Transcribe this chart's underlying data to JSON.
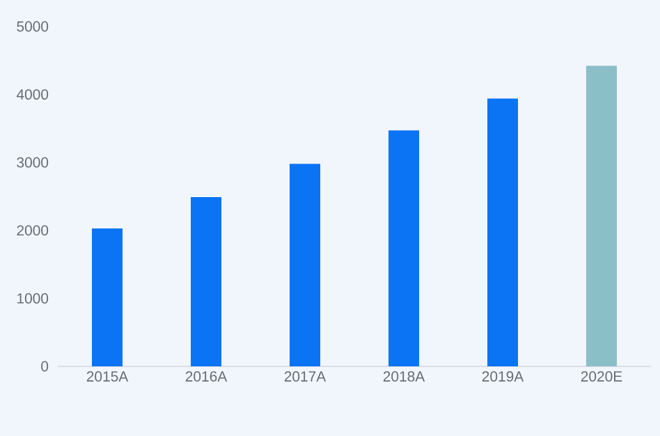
{
  "chart_data": {
    "type": "bar",
    "categories": [
      "2015A",
      "2016A",
      "2017A",
      "2018A",
      "2019A",
      "2020E"
    ],
    "values": [
      2030,
      2490,
      2980,
      3470,
      3940,
      4420
    ],
    "colors": [
      "#0a74f5",
      "#0a74f5",
      "#0a74f5",
      "#0a74f5",
      "#0a74f5",
      "#8bbfc8"
    ],
    "ylim": [
      0,
      5000
    ],
    "yticks": [
      0,
      1000,
      2000,
      3000,
      4000,
      5000
    ]
  }
}
